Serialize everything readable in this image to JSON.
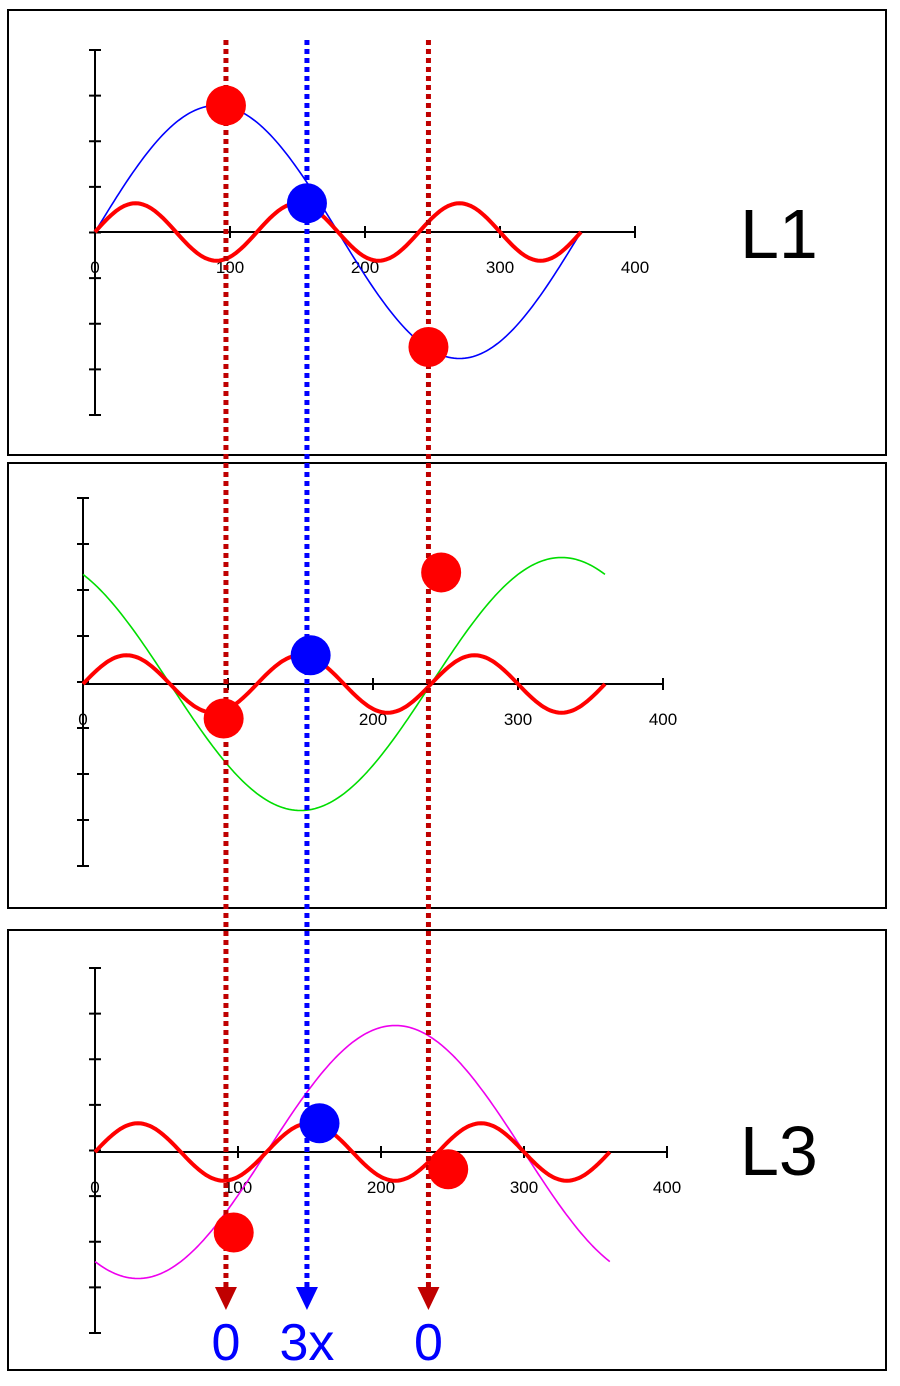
{
  "chart_data": [
    {
      "type": "line",
      "label": "L1",
      "x_tick_labels": [
        "0",
        "100",
        "200",
        "300",
        "400"
      ],
      "xlim": [
        0,
        400
      ],
      "ylim": [
        -1.6,
        1.6
      ],
      "series": [
        {
          "color": "#0000ff",
          "amplitude": 1.1,
          "period": 360,
          "phase": 0,
          "x": [
            0,
            360
          ]
        },
        {
          "color": "#ff0000",
          "amplitude": 0.25,
          "period": 120,
          "phase": 0,
          "x": [
            0,
            360
          ]
        }
      ],
      "markers": [
        {
          "x": 97,
          "y": 1.1,
          "color": "#ff0000"
        },
        {
          "x": 157,
          "y": 0.25,
          "color": "#0000ff"
        },
        {
          "x": 247,
          "y": -1.0,
          "color": "#ff0000"
        }
      ]
    },
    {
      "type": "line",
      "label": "",
      "x_tick_labels": [
        "0",
        "100",
        "200",
        "300",
        "400"
      ],
      "xlim": [
        0,
        400
      ],
      "ylim": [
        -1.6,
        1.6
      ],
      "series": [
        {
          "color": "#00dd00",
          "amplitude": 1.1,
          "period": 360,
          "phase": -120,
          "x": [
            0,
            360
          ]
        },
        {
          "color": "#ff0000",
          "amplitude": 0.25,
          "period": 120,
          "phase": 0,
          "x": [
            0,
            360
          ]
        }
      ],
      "markers": [
        {
          "x": 97,
          "y": -0.3,
          "color": "#ff0000"
        },
        {
          "x": 157,
          "y": 0.25,
          "color": "#0000ff"
        },
        {
          "x": 247,
          "y": 0.97,
          "color": "#ff0000"
        }
      ]
    },
    {
      "type": "line",
      "label": "L3",
      "x_tick_labels": [
        "0",
        "100",
        "200",
        "300",
        "400"
      ],
      "xlim": [
        0,
        400
      ],
      "ylim": [
        -1.6,
        1.6
      ],
      "series": [
        {
          "color": "#ee00ee",
          "amplitude": 1.1,
          "period": 360,
          "phase": 120,
          "x": [
            0,
            360
          ]
        },
        {
          "color": "#ff0000",
          "amplitude": 0.25,
          "period": 120,
          "phase": 0,
          "x": [
            0,
            360
          ]
        }
      ],
      "markers": [
        {
          "x": 97,
          "y": -0.7,
          "color": "#ff0000"
        },
        {
          "x": 157,
          "y": 0.25,
          "color": "#0000ff"
        },
        {
          "x": 247,
          "y": -0.15,
          "color": "#ff0000"
        }
      ]
    }
  ],
  "guides": [
    {
      "x": 97,
      "color": "#c00000",
      "result": "0"
    },
    {
      "x": 157,
      "color": "#0000ff",
      "result": "3x"
    },
    {
      "x": 247,
      "color": "#c00000",
      "result": "0"
    }
  ],
  "colors": {
    "frame": "#000000",
    "axis": "#000000",
    "result_text": "#0000ff"
  }
}
